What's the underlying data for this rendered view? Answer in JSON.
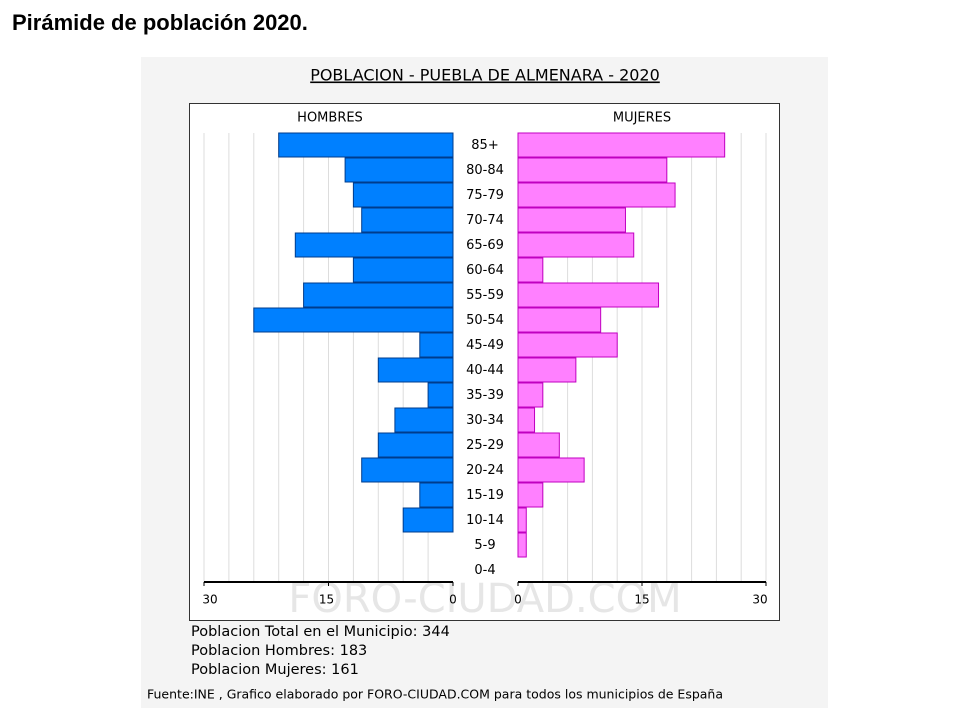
{
  "page_title": "Pirámide de población 2020.",
  "chart_data": {
    "type": "pyramid",
    "title": "POBLACION - PUEBLA DE ALMENARA - 2020",
    "categories": [
      "85+",
      "80-84",
      "75-79",
      "70-74",
      "65-69",
      "60-64",
      "55-59",
      "50-54",
      "45-49",
      "40-44",
      "35-39",
      "30-34",
      "25-29",
      "20-24",
      "15-19",
      "10-14",
      "5-9",
      "0-4"
    ],
    "series": [
      {
        "name": "HOMBRES",
        "color": "#0080ff",
        "values": [
          21,
          13,
          12,
          11,
          19,
          12,
          18,
          24,
          4,
          9,
          3,
          7,
          9,
          11,
          4,
          6,
          0,
          0
        ]
      },
      {
        "name": "MUJERES",
        "color": "#ff80ff",
        "values": [
          25,
          18,
          19,
          13,
          14,
          3,
          17,
          10,
          12,
          7,
          3,
          2,
          5,
          8,
          3,
          1,
          1,
          0
        ]
      }
    ],
    "xlim": [
      0,
      30
    ],
    "xticks": [
      0,
      15,
      30
    ],
    "xgrid": [
      3,
      6,
      9,
      12,
      15,
      18,
      21,
      24,
      27,
      30
    ],
    "watermark": "FORO-CIUDAD.COM"
  },
  "stats": [
    "Poblacion Total en el Municipio: 344",
    "Poblacion Hombres: 183",
    "Poblacion Mujeres: 161"
  ],
  "source": "Fuente:INE , Grafico elaborado por FORO-CIUDAD.COM para todos los municipios de España"
}
